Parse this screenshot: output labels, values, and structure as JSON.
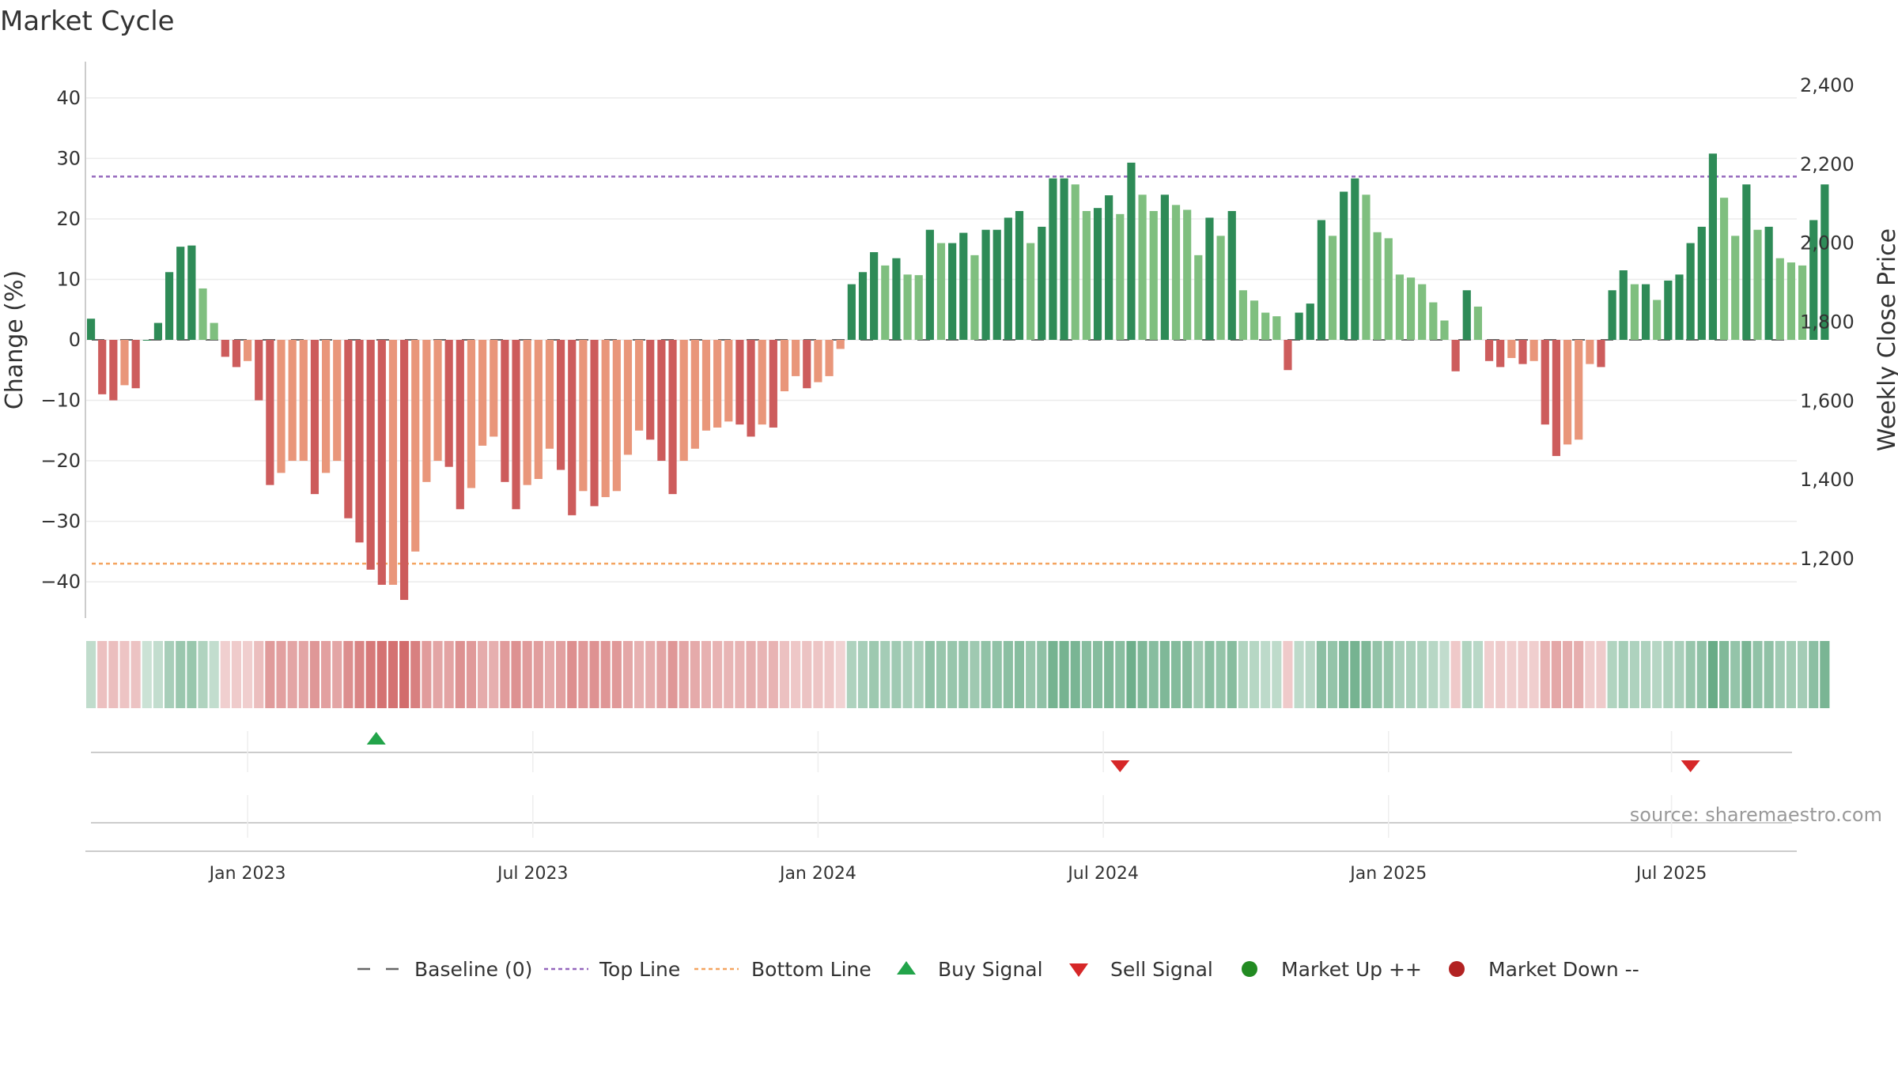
{
  "title": "Market Cycle",
  "source": "source: sharemaestro.com",
  "colors": {
    "strong_up": "#2e8b57",
    "up": "#7fbf7f",
    "strong_down": "#cd5c5c",
    "down": "#e9967a",
    "top_line": "#9467bd",
    "bottom_line": "#f4a460",
    "buy": "#22a44a",
    "sell": "#d62728",
    "market_up": "#228b22",
    "market_down": "#b22222"
  },
  "legend": [
    {
      "key": "baseline",
      "label": "Baseline (0)"
    },
    {
      "key": "top",
      "label": "Top Line"
    },
    {
      "key": "bottom",
      "label": "Bottom Line"
    },
    {
      "key": "buy",
      "label": "Buy Signal"
    },
    {
      "key": "sell",
      "label": "Sell Signal"
    },
    {
      "key": "up",
      "label": "Market Up ++"
    },
    {
      "key": "down",
      "label": "Market Down --"
    }
  ],
  "chart_data": {
    "type": "bar",
    "ylabel": "Change (%)",
    "y2label": "Weekly Close Price",
    "ylim": [
      -46,
      46
    ],
    "y_ticks": [
      40,
      30,
      20,
      10,
      0,
      -10,
      -20,
      -30,
      -40
    ],
    "y_tick_labels": [
      "40",
      "30",
      "20",
      "10",
      "0",
      "−10",
      "−20",
      "−30",
      "−40"
    ],
    "y2lim": [
      1050,
      2460
    ],
    "y2_ticks": [
      2400,
      2200,
      2000,
      1800,
      1600,
      1400,
      1200
    ],
    "y2_tick_labels": [
      "2,400",
      "2,200",
      "2,000",
      "1,800",
      "1,600",
      "1,400",
      "1,200"
    ],
    "top_line": 27,
    "bottom_line": -37,
    "x_ticks": [
      "Jan 2023",
      "Jul 2023",
      "Jan 2024",
      "Jul 2024",
      "Jan 2025",
      "Jul 2025"
    ],
    "x_tick_positions": [
      14,
      39.5,
      65,
      90.5,
      116,
      141.3
    ],
    "x_range": [
      -0.5,
      152.5
    ],
    "grid": true,
    "legend_position": "bottom",
    "values": [
      3.5,
      -9,
      -10,
      -7.5,
      -8,
      0,
      2.8,
      11.2,
      15.4,
      15.6,
      8.5,
      2.8,
      -2.8,
      -4.5,
      -3.5,
      -10,
      -24,
      -22,
      -20,
      -20,
      -25.5,
      -22,
      -20,
      -29.5,
      -33.5,
      -38,
      -40.5,
      -40.5,
      -43,
      -35,
      -23.5,
      -20,
      -21,
      -28,
      -24.5,
      -17.5,
      -16,
      -23.5,
      -28,
      -24,
      -23,
      -18,
      -21.5,
      -29,
      -25,
      -27.5,
      -26,
      -25,
      -19,
      -15,
      -16.5,
      -20,
      -25.5,
      -20,
      -18,
      -15,
      -14.5,
      -13.5,
      -14,
      -16,
      -14,
      -14.5,
      -8.5,
      -6,
      -8,
      -7,
      -6,
      -1.5,
      9.2,
      11.2,
      14.5,
      12.3,
      13.5,
      10.8,
      10.7,
      18.2,
      16,
      16,
      17.7,
      14,
      18.2,
      18.2,
      20.2,
      21.3,
      16,
      18.7,
      26.7,
      26.7,
      25.7,
      21.3,
      21.8,
      23.9,
      20.8,
      29.3,
      24,
      21.3,
      24,
      22.3,
      21.5,
      14,
      20.2,
      17.2,
      21.3,
      8.2,
      6.5,
      4.5,
      3.9,
      -5,
      4.5,
      6,
      19.8,
      17.2,
      24.5,
      26.7,
      24,
      17.8,
      16.8,
      10.8,
      10.3,
      9.2,
      6.2,
      3.2,
      -5.2,
      8.2,
      5.5,
      -3.5,
      -4.5,
      -3,
      -4,
      -3.5,
      -14,
      -19.2,
      -17.3,
      -16.5,
      -4,
      -4.5,
      8.2,
      11.5,
      9.2,
      9.2,
      6.6,
      9.8,
      10.8,
      16,
      18.7,
      30.8,
      23.5,
      17.2,
      25.7,
      18.2,
      18.7,
      13.5,
      12.8,
      12.3,
      19.8,
      25.7
    ],
    "buy_signals": [
      25.5
    ],
    "sell_signals": [
      92,
      143
    ]
  }
}
